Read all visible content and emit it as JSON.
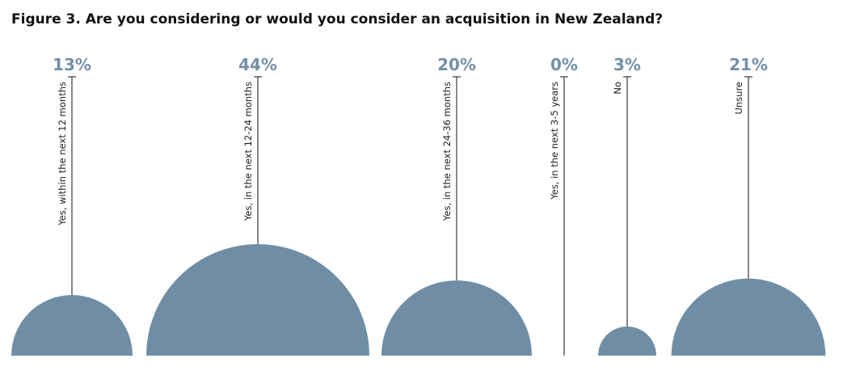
{
  "chart_data": {
    "type": "semicircle",
    "title": "Figure 3. Are you considering or would you consider an acquisition in New Zealand?",
    "categories": [
      "Yes, within the next 12 months",
      "Yes, in the next 12-24 months",
      "Yes, in the next 24-36 months",
      "Yes, in the next 3-5 years",
      "No",
      "Unsure"
    ],
    "values": [
      13,
      44,
      20,
      0,
      3,
      21
    ],
    "value_labels": [
      "13%",
      "44%",
      "20%",
      "0%",
      "3%",
      "21%"
    ],
    "color": "#6f8ea5"
  }
}
